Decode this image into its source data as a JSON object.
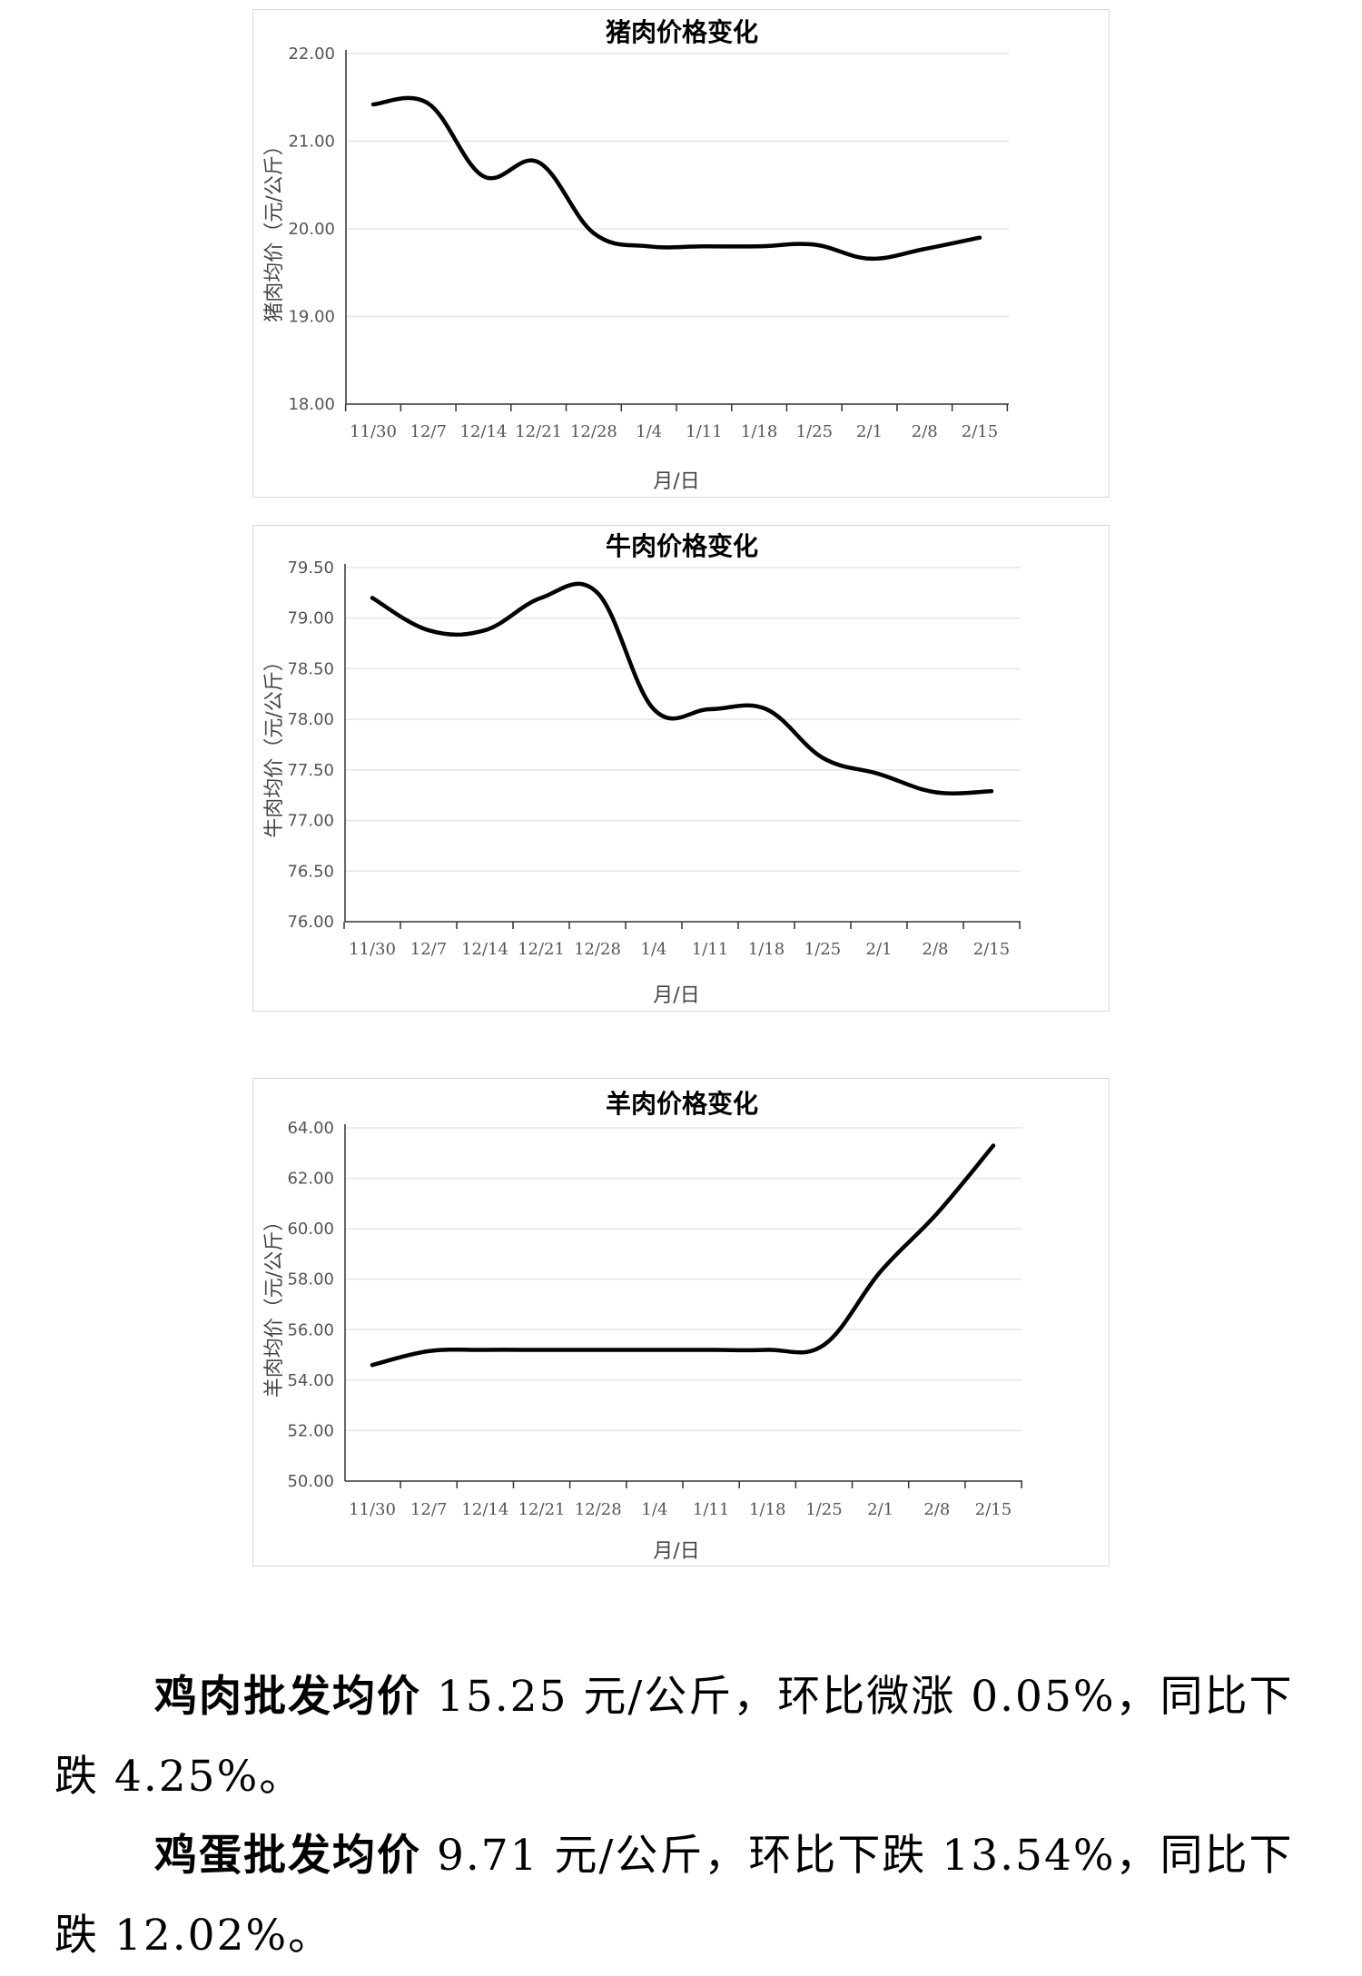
{
  "chart_data": [
    {
      "type": "line",
      "title": "猪肉价格变化",
      "xlabel": "月/日",
      "ylabel": "猪肉均价（元/公斤）",
      "categories": [
        "11/30",
        "12/7",
        "12/14",
        "12/21",
        "12/28",
        "1/4",
        "1/11",
        "1/18",
        "1/25",
        "2/1",
        "2/8",
        "2/15"
      ],
      "ylim": [
        18.0,
        22.0
      ],
      "yticks": [
        "18.00",
        "19.00",
        "20.00",
        "21.00",
        "22.00"
      ],
      "series": [
        {
          "values": [
            21.42,
            21.43,
            20.6,
            20.76,
            19.95,
            19.8,
            19.8,
            19.8,
            19.82,
            19.66,
            19.77,
            19.9
          ]
        }
      ],
      "grid": true,
      "legend": "none"
    },
    {
      "type": "line",
      "title": "牛肉价格变化",
      "xlabel": "月/日",
      "ylabel": "牛肉均价（元/公斤）",
      "categories": [
        "11/30",
        "12/7",
        "12/14",
        "12/21",
        "12/28",
        "1/4",
        "1/11",
        "1/18",
        "1/25",
        "2/1",
        "2/8",
        "2/15"
      ],
      "ylim": [
        76.0,
        79.5
      ],
      "yticks": [
        "76.00",
        "76.50",
        "77.00",
        "77.50",
        "78.00",
        "78.50",
        "79.00",
        "79.50"
      ],
      "series": [
        {
          "values": [
            79.2,
            78.88,
            78.88,
            79.2,
            79.25,
            78.1,
            78.1,
            78.1,
            77.62,
            77.46,
            77.28,
            77.29
          ]
        }
      ],
      "grid": true,
      "legend": "none"
    },
    {
      "type": "line",
      "title": "羊肉价格变化",
      "xlabel": "月/日",
      "ylabel": "羊肉均价（元/公斤）",
      "categories": [
        "11/30",
        "12/7",
        "12/14",
        "12/21",
        "12/28",
        "1/4",
        "1/11",
        "1/18",
        "1/25",
        "2/1",
        "2/8",
        "2/15"
      ],
      "ylim": [
        50.0,
        64.0
      ],
      "yticks": [
        "50.00",
        "52.00",
        "54.00",
        "56.00",
        "58.00",
        "60.00",
        "62.00",
        "64.00"
      ],
      "series": [
        {
          "values": [
            54.6,
            55.15,
            55.2,
            55.2,
            55.2,
            55.2,
            55.2,
            55.2,
            55.4,
            58.3,
            60.6,
            63.3
          ]
        }
      ],
      "grid": true,
      "legend": "none"
    }
  ],
  "text": {
    "p1_lead": "鸡肉批发均价",
    "p1_line1": " 15.25 元/公斤，环比微涨 0.05%，同比下",
    "p1_line2": "跌 4.25%。",
    "p2_lead": "鸡蛋批发均价",
    "p2_line1": " 9.71 元/公斤，环比下跌 13.54%，同比下",
    "p2_line2": "跌 12.02%。"
  }
}
